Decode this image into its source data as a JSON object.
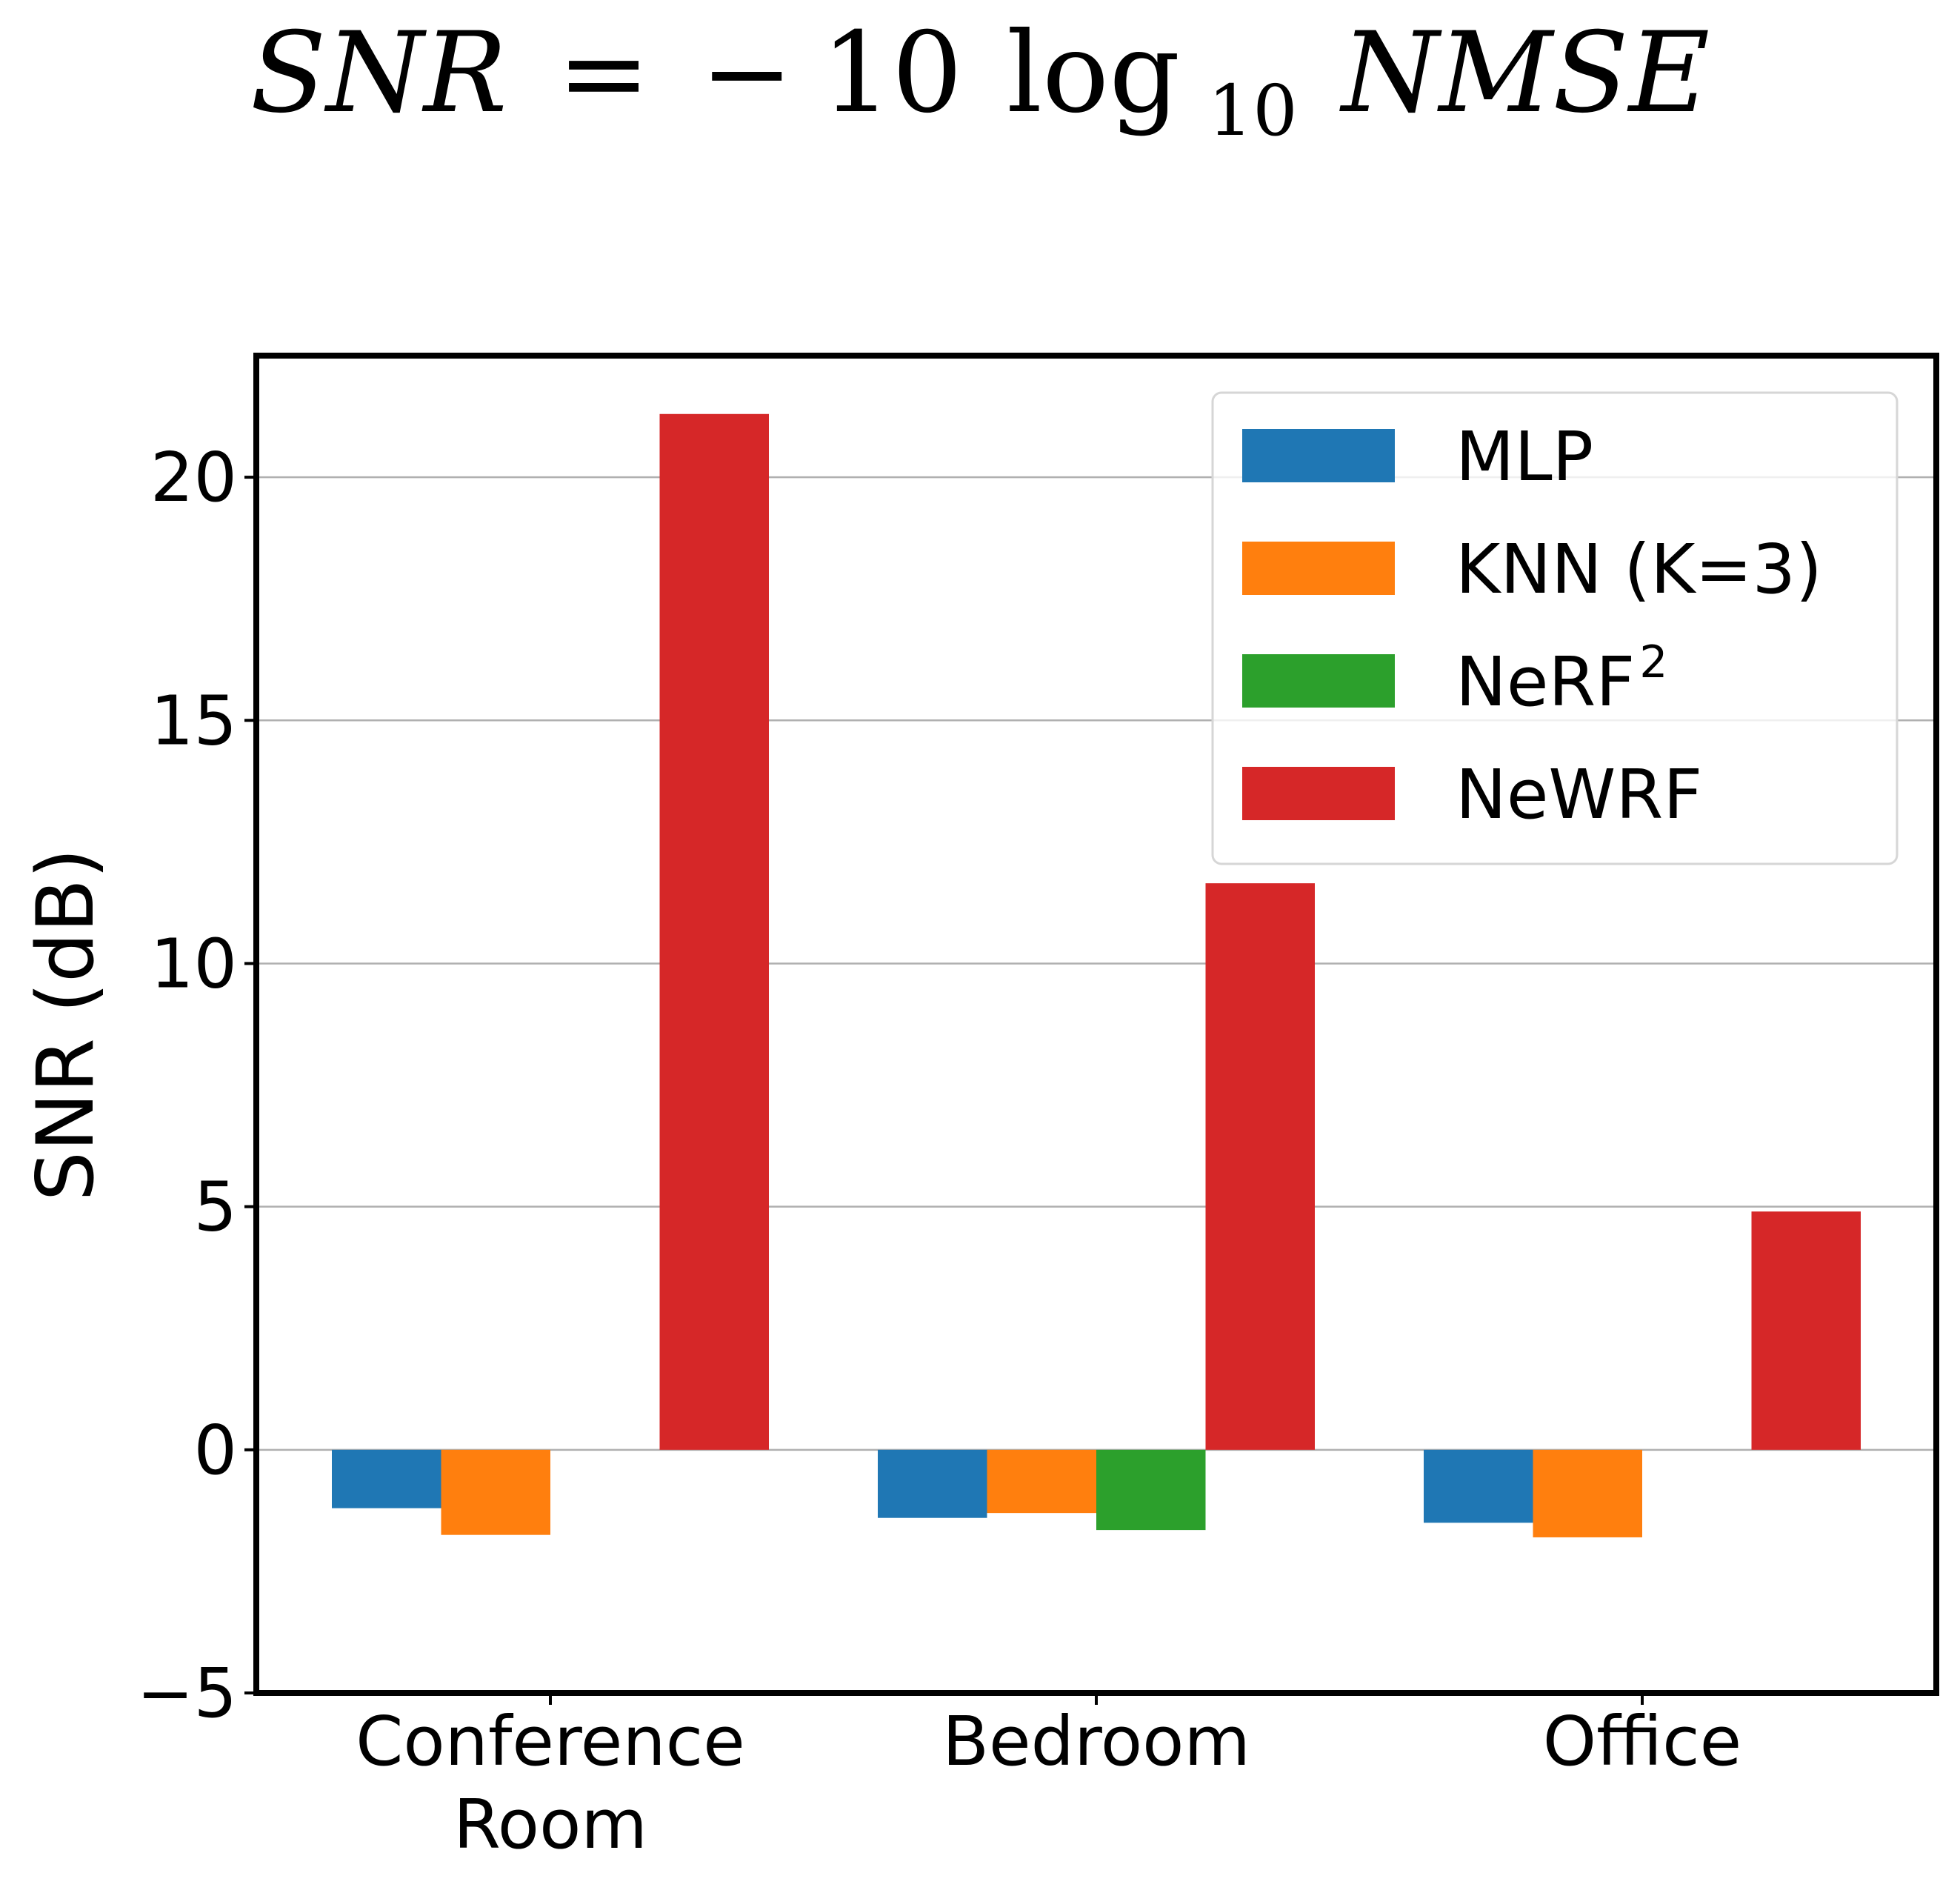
{
  "chart_data": {
    "type": "bar",
    "title": {
      "lhs": "SNR",
      "equals": "=",
      "minus": "−",
      "coef": "10",
      "fn": "log",
      "base": "10",
      "arg": "NMSE"
    },
    "ylabel": "SNR (dB)",
    "xlabel": "",
    "ylim": [
      -5,
      22.5
    ],
    "yticks": [
      -5,
      0,
      5,
      10,
      15,
      20
    ],
    "ytick_labels": [
      "−5",
      "0",
      "5",
      "10",
      "15",
      "20"
    ],
    "grid": "y",
    "legend_position": "top-right",
    "categories": [
      [
        "Conference",
        "Room"
      ],
      [
        "Bedroom"
      ],
      [
        "Office"
      ]
    ],
    "series": [
      {
        "name": "MLP",
        "color": "#1f77b4",
        "values": [
          -1.2,
          -1.4,
          -1.5
        ]
      },
      {
        "name": "KNN (K=3)",
        "color": "#ff7f0e",
        "values": [
          -1.75,
          -1.3,
          -1.8
        ]
      },
      {
        "name": "NeRF",
        "name_sup": "2",
        "color": "#2ca02c",
        "values": [
          0.0,
          -1.65,
          0.0
        ]
      },
      {
        "name": "NeWRF",
        "color": "#d62728",
        "values": [
          21.3,
          11.65,
          4.9
        ]
      }
    ]
  }
}
